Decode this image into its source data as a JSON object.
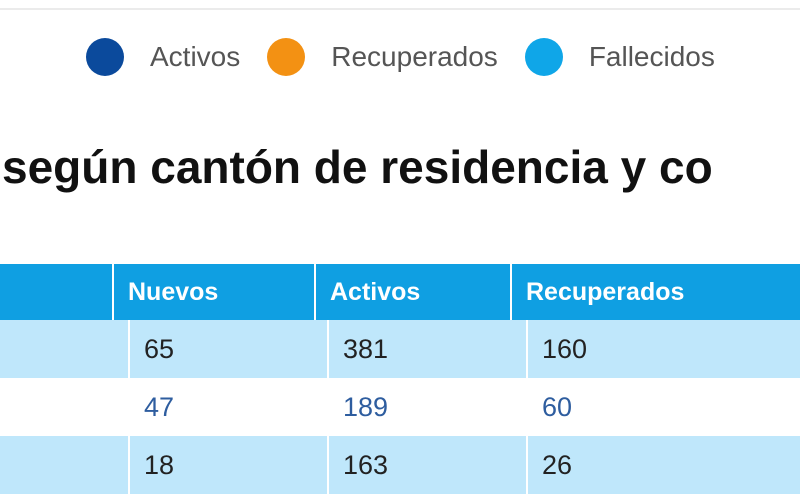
{
  "legend": [
    {
      "label": "Activos",
      "color": "#0b4a9c"
    },
    {
      "label": "Recuperados",
      "color": "#f39113"
    },
    {
      "label": "Fallecidos",
      "color": "#0fa6e8"
    }
  ],
  "heading": "según cantón de residencia y co",
  "table": {
    "headers": [
      "",
      "Nuevos",
      "Activos",
      "Recuperados"
    ],
    "rows": [
      [
        "",
        "65",
        "381",
        "160"
      ],
      [
        "",
        "47",
        "189",
        "60"
      ],
      [
        "",
        "18",
        "163",
        "26"
      ]
    ]
  },
  "colors": {
    "header_bg": "#0f9fe2",
    "row_light": "#bfe7fb",
    "row_white_text": "#2e5d9f"
  }
}
